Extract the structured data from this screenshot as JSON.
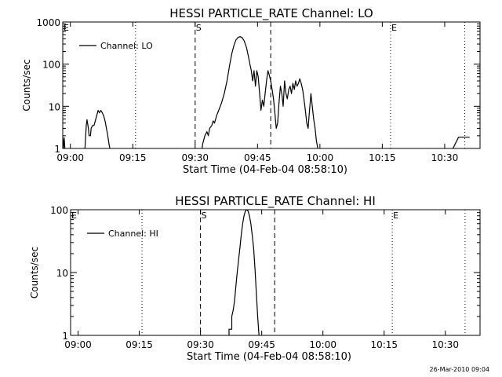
{
  "chart_data": [
    {
      "type": "line",
      "title": "HESSI PARTICLE_RATE Channel: LO",
      "xlabel": "Start Time (04-Feb-04 08:58:10)",
      "ylabel": "Counts/sec",
      "y_scale": "log",
      "ylim": [
        1,
        1000
      ],
      "xlim": [
        "08:58:10",
        "10:38:30"
      ],
      "x_ticks": [
        "09:00",
        "09:15",
        "09:30",
        "09:45",
        "10:00",
        "10:15",
        "10:30"
      ],
      "y_ticks": [
        "1",
        "10",
        "100",
        "1000"
      ],
      "legend": {
        "label": "Channel: LO",
        "position": "top-left"
      },
      "markers": [
        {
          "label": "E",
          "time": "08:58:10",
          "style": "dotted"
        },
        {
          "label": "",
          "time": "09:15:40",
          "style": "dotted"
        },
        {
          "label": "S",
          "time": "09:30:00",
          "style": "dashed"
        },
        {
          "label": "",
          "time": "09:48:10",
          "style": "dashed"
        },
        {
          "label": "E",
          "time": "10:17:00",
          "style": "dotted"
        },
        {
          "label": "",
          "time": "10:34:50",
          "style": "dotted"
        }
      ],
      "series": [
        {
          "name": "Channel: LO",
          "segments": [
            [
              [
                "08:58:10",
                1.8
              ],
              [
                "08:58:20",
                1.0
              ],
              [
                "08:58:30",
                1.8
              ],
              [
                "08:58:40",
                1.0
              ]
            ],
            [
              [
                "09:03:30",
                1.0
              ],
              [
                "09:03:50",
                3.5
              ],
              [
                "09:04:00",
                4.8
              ],
              [
                "09:04:20",
                3.0
              ],
              [
                "09:04:30",
                2.0
              ],
              [
                "09:04:50",
                2.0
              ],
              [
                "09:05:00",
                3.0
              ],
              [
                "09:05:20",
                3.5
              ],
              [
                "09:05:40",
                3.5
              ],
              [
                "09:06:00",
                4.5
              ],
              [
                "09:06:20",
                6.0
              ],
              [
                "09:06:40",
                8.0
              ],
              [
                "09:07:00",
                7.0
              ],
              [
                "09:07:20",
                8.0
              ],
              [
                "09:07:40",
                7.0
              ],
              [
                "09:08:00",
                6.0
              ],
              [
                "09:08:20",
                4.5
              ],
              [
                "09:08:40",
                3.0
              ],
              [
                "09:09:00",
                2.0
              ],
              [
                "09:09:20",
                1.2
              ],
              [
                "09:09:30",
                1.0
              ]
            ],
            [
              [
                "09:31:40",
                1.0
              ],
              [
                "09:31:50",
                1.3
              ],
              [
                "09:32:20",
                2.0
              ],
              [
                "09:32:50",
                2.5
              ],
              [
                "09:33:10",
                2.0
              ],
              [
                "09:33:30",
                3.0
              ],
              [
                "09:34:00",
                3.5
              ],
              [
                "09:34:20",
                4.5
              ],
              [
                "09:34:40",
                4.0
              ],
              [
                "09:35:10",
                6.0
              ],
              [
                "09:35:40",
                8.0
              ],
              [
                "09:36:20",
                12
              ],
              [
                "09:37:00",
                20
              ],
              [
                "09:37:40",
                40
              ],
              [
                "09:38:20",
                100
              ],
              [
                "09:38:50",
                180
              ],
              [
                "09:39:20",
                280
              ],
              [
                "09:39:50",
                380
              ],
              [
                "09:40:20",
                430
              ],
              [
                "09:40:50",
                450
              ],
              [
                "09:41:20",
                420
              ],
              [
                "09:41:50",
                350
              ],
              [
                "09:42:20",
                250
              ],
              [
                "09:42:50",
                150
              ],
              [
                "09:43:10",
                100
              ],
              [
                "09:43:30",
                70
              ],
              [
                "09:43:50",
                40
              ],
              [
                "09:44:10",
                70
              ],
              [
                "09:44:30",
                30
              ],
              [
                "09:44:50",
                70
              ],
              [
                "09:45:10",
                50
              ],
              [
                "09:45:30",
                20
              ],
              [
                "09:45:50",
                8
              ],
              [
                "09:46:10",
                14
              ],
              [
                "09:46:30",
                10
              ],
              [
                "09:46:50",
                20
              ],
              [
                "09:47:10",
                40
              ],
              [
                "09:47:30",
                70
              ],
              [
                "09:47:50",
                55
              ],
              [
                "09:48:10",
                40
              ],
              [
                "09:48:30",
                25
              ],
              [
                "09:48:50",
                15
              ],
              [
                "09:49:10",
                7
              ],
              [
                "09:49:30",
                3
              ],
              [
                "09:49:50",
                4
              ],
              [
                "09:50:10",
                12
              ],
              [
                "09:50:30",
                30
              ],
              [
                "09:50:50",
                20
              ],
              [
                "09:51:10",
                10
              ],
              [
                "09:51:30",
                40
              ],
              [
                "09:51:50",
                20
              ],
              [
                "09:52:10",
                15
              ],
              [
                "09:52:30",
                25
              ],
              [
                "09:52:50",
                30
              ],
              [
                "09:53:10",
                20
              ],
              [
                "09:53:30",
                35
              ],
              [
                "09:53:50",
                25
              ],
              [
                "09:54:10",
                40
              ],
              [
                "09:54:30",
                30
              ],
              [
                "09:54:50",
                35
              ],
              [
                "09:55:10",
                45
              ],
              [
                "09:55:30",
                35
              ],
              [
                "09:55:50",
                25
              ],
              [
                "09:56:10",
                15
              ],
              [
                "09:56:30",
                8
              ],
              [
                "09:56:50",
                4
              ],
              [
                "09:57:10",
                3
              ],
              [
                "09:57:30",
                8
              ],
              [
                "09:57:50",
                20
              ],
              [
                "09:58:10",
                10
              ],
              [
                "09:58:30",
                5
              ],
              [
                "09:58:50",
                3
              ],
              [
                "09:59:10",
                1.5
              ],
              [
                "09:59:30",
                1.0
              ]
            ],
            [
              [
                "10:32:00",
                1.0
              ],
              [
                "10:33:20",
                1.85
              ],
              [
                "10:36:00",
                1.85
              ]
            ]
          ]
        }
      ]
    },
    {
      "type": "line",
      "title": "HESSI PARTICLE_RATE Channel: HI",
      "xlabel": "Start Time (04-Feb-04 08:58:10)",
      "ylabel": "Counts/sec",
      "y_scale": "log",
      "ylim": [
        1,
        100
      ],
      "xlim": [
        "08:58:10",
        "10:38:30"
      ],
      "x_ticks": [
        "09:00",
        "09:15",
        "09:30",
        "09:45",
        "10:00",
        "10:15",
        "10:30"
      ],
      "y_ticks": [
        "1",
        "10",
        "100"
      ],
      "legend": {
        "label": "Channel: HI",
        "position": "top-left"
      },
      "markers": [
        {
          "label": "E",
          "time": "08:58:10",
          "style": "dotted"
        },
        {
          "label": "",
          "time": "09:15:40",
          "style": "dotted"
        },
        {
          "label": "S",
          "time": "09:30:00",
          "style": "dashed"
        },
        {
          "label": "",
          "time": "09:48:10",
          "style": "dashed"
        },
        {
          "label": "E",
          "time": "10:17:00",
          "style": "dotted"
        },
        {
          "label": "",
          "time": "10:34:50",
          "style": "dotted"
        }
      ],
      "series": [
        {
          "name": "Channel: HI",
          "segments": [
            [
              [
                "09:37:00",
                1.0
              ],
              [
                "09:37:00",
                1.25
              ],
              [
                "09:37:40",
                1.25
              ],
              [
                "09:37:40",
                2.0
              ],
              [
                "09:38:00",
                2.5
              ],
              [
                "09:38:20",
                3.5
              ],
              [
                "09:38:40",
                6.0
              ],
              [
                "09:39:00",
                10
              ],
              [
                "09:39:20",
                16
              ],
              [
                "09:39:40",
                25
              ],
              [
                "09:40:00",
                40
              ],
              [
                "09:40:20",
                60
              ],
              [
                "09:40:40",
                80
              ],
              [
                "09:41:00",
                95
              ],
              [
                "09:41:20",
                100
              ],
              [
                "09:41:40",
                95
              ],
              [
                "09:42:00",
                80
              ],
              [
                "09:42:20",
                60
              ],
              [
                "09:42:40",
                40
              ],
              [
                "09:43:00",
                25
              ],
              [
                "09:43:20",
                12
              ],
              [
                "09:43:40",
                5
              ],
              [
                "09:44:00",
                2
              ],
              [
                "09:44:20",
                1.0
              ]
            ]
          ]
        }
      ]
    }
  ],
  "footer": {
    "date": "26-Mar-2010 09:04"
  }
}
